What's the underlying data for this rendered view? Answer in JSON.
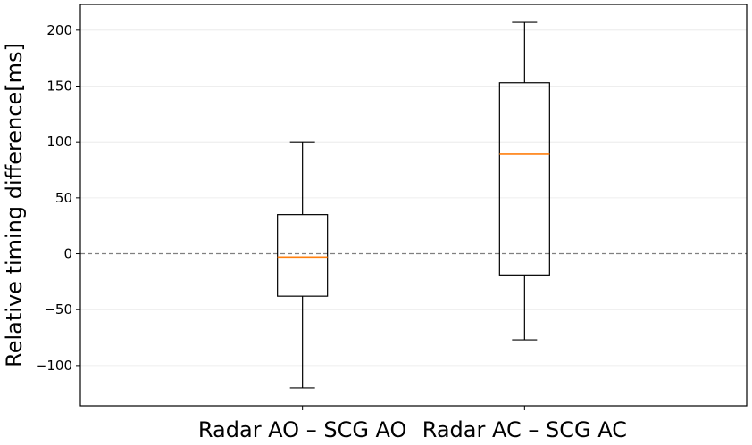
{
  "chart_data": {
    "type": "box",
    "categories": [
      "Radar AO – SCG AO",
      "Radar AC – SCG AC"
    ],
    "boxes": [
      {
        "whisker_low": -120,
        "q1": -38,
        "median": -3,
        "q3": 35,
        "whisker_high": 100
      },
      {
        "whisker_low": -77,
        "q1": -19,
        "median": 89,
        "q3": 153,
        "whisker_high": 207
      }
    ],
    "ylabel": "Relative timing difference[ms]",
    "xlabel": "",
    "title": "",
    "ylim": [
      -136,
      223
    ],
    "yticks": [
      -100,
      -50,
      0,
      50,
      100,
      150,
      200
    ],
    "reference_line": {
      "y": 0,
      "style": "dashed",
      "color": "#808080"
    },
    "grid": "faint horizontal",
    "colors": {
      "box": "#000000",
      "median": "#ff7f0e",
      "grid": "#e8e8e8"
    }
  }
}
